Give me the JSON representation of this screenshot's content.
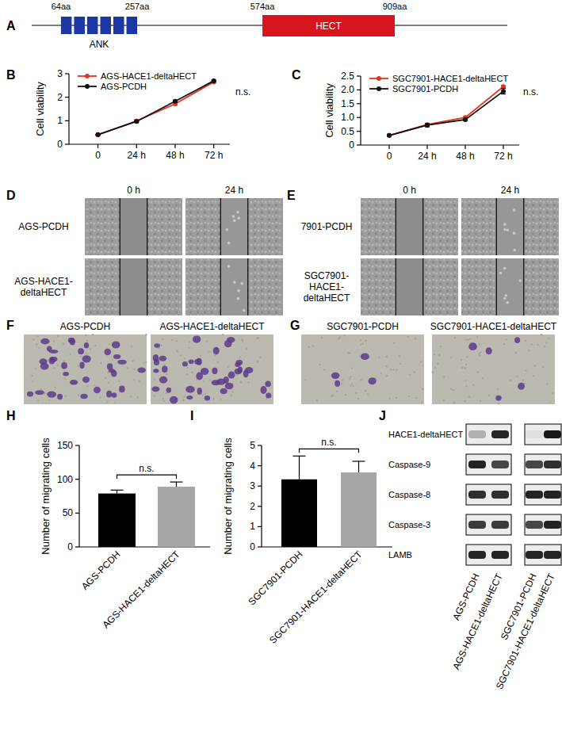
{
  "protein_diagram": {
    "panel": "A",
    "domains": [
      {
        "name": "ANK",
        "start": 64,
        "end": 257,
        "start_label": "64aa",
        "end_label": "257aa",
        "repeats": 6,
        "color": "#1c37a3"
      },
      {
        "name": "HECT",
        "start": 574,
        "end": 909,
        "start_label": "574aa",
        "end_label": "909aa",
        "color": "#d8141c"
      }
    ]
  },
  "chart_data": [
    {
      "panel": "B",
      "type": "line",
      "y_label": "Cell viability",
      "annotation": "n.s.",
      "x": [
        0,
        24,
        48,
        72
      ],
      "xlim": [
        -18,
        82
      ],
      "xticks": [
        0,
        {
          "value": 24,
          "label": "24 h"
        },
        {
          "value": 48,
          "label": "48 h"
        },
        {
          "value": 72,
          "label": "72 h"
        }
      ],
      "ylim": [
        0,
        3
      ],
      "yticks": [
        0,
        1,
        2,
        3
      ],
      "legend": "top-left",
      "marker": "circle",
      "series": [
        {
          "name": "AGS-HACE1-deltaHECT",
          "color": "#e8321e",
          "values": [
            0.4,
            0.99,
            1.72,
            2.65
          ],
          "errors": [
            0.02,
            0.05,
            0.05,
            0.03
          ]
        },
        {
          "name": "AGS-PCDH",
          "color": "#111111",
          "values": [
            0.41,
            0.97,
            1.83,
            2.7
          ],
          "errors": [
            0.02,
            0.03,
            0.04,
            0.03
          ]
        }
      ]
    },
    {
      "panel": "C",
      "type": "line",
      "y_label": "Cell viability",
      "annotation": "n.s.",
      "x": [
        0,
        24,
        48,
        72
      ],
      "xlim": [
        -18,
        82
      ],
      "xticks": [
        0,
        {
          "value": 24,
          "label": "24 h"
        },
        {
          "value": 48,
          "label": "48 h"
        },
        {
          "value": 72,
          "label": "72 h"
        }
      ],
      "ylim": [
        0,
        2.5
      ],
      "yticks": [
        0,
        0.5,
        {
          "value": 1,
          "label": "1.0"
        },
        1.5,
        {
          "value": 2,
          "label": "2.0"
        },
        2.5
      ],
      "legend": "top-left",
      "marker": "circle",
      "series": [
        {
          "name": "SGC7901-HACE1-deltaHECT",
          "color": "#e8321e",
          "values": [
            0.35,
            0.74,
            1.0,
            2.12
          ],
          "errors": [
            0.02,
            0.04,
            0.03,
            0.04
          ]
        },
        {
          "name": "SGC7901-PCDH",
          "color": "#111111",
          "values": [
            0.35,
            0.72,
            0.92,
            1.95
          ],
          "errors": [
            0.02,
            0.06,
            0.03,
            0.1
          ]
        }
      ]
    },
    {
      "panel": "H",
      "type": "bar",
      "y_label": "Number of migrating cells",
      "annotation": "n.s.",
      "categories": [
        "AGS-PCDH",
        "AGS-HACE1-deltaHECT"
      ],
      "values": [
        79,
        89
      ],
      "errors": [
        5,
        7
      ],
      "colors": [
        "#000000",
        "#a6a6a6"
      ],
      "ylim": [
        0,
        150
      ],
      "yticks": [
        0,
        50,
        100,
        150
      ]
    },
    {
      "panel": "I",
      "type": "bar",
      "y_label": "Number of migrating cells",
      "annotation": "n.s.",
      "categories": [
        "SGC7901-PCDH",
        "SGC7901-HACE1-deltaHECT"
      ],
      "values": [
        3.33,
        3.67
      ],
      "errors": [
        1.15,
        0.55
      ],
      "colors": [
        "#000000",
        "#a6a6a6"
      ],
      "ylim": [
        0,
        5
      ],
      "yticks": [
        0,
        1,
        2,
        3,
        4,
        5
      ]
    }
  ],
  "wound_healing": [
    {
      "panel": "D",
      "columns": [
        "0 h",
        "24 h"
      ],
      "rows": [
        "AGS-PCDH",
        "AGS-HACE1-deltaHECT"
      ]
    },
    {
      "panel": "E",
      "columns": [
        "0 h",
        "24 h"
      ],
      "rows": [
        "7901-PCDH",
        "SGC7901-HACE1-deltaHECT"
      ]
    }
  ],
  "transwell": [
    {
      "panel": "F",
      "images": [
        "AGS-PCDH",
        "AGS-HACE1-deltaHECT"
      ]
    },
    {
      "panel": "G",
      "images": [
        "SGC7901-PCDH",
        "SGC7901-HACE1-deltaHECT"
      ]
    }
  ],
  "western_blot": {
    "panel": "J",
    "rows": [
      "HACE1-deltaHECT",
      "Caspase-9",
      "Caspase-8",
      "Caspase-3",
      "LAMB"
    ],
    "lanes": [
      "AGS-PCDH",
      "AGS-HACE1-deltaHECT",
      "SGC7901-PCDH",
      "SGC7901-HACE1-deltaHECT"
    ],
    "intensity": [
      [
        0.25,
        0.85,
        0.05,
        0.9
      ],
      [
        0.85,
        0.7,
        0.7,
        0.8
      ],
      [
        0.8,
        0.8,
        0.85,
        0.85
      ],
      [
        0.75,
        0.75,
        0.7,
        0.85
      ],
      [
        0.85,
        0.85,
        0.85,
        0.85
      ]
    ]
  }
}
